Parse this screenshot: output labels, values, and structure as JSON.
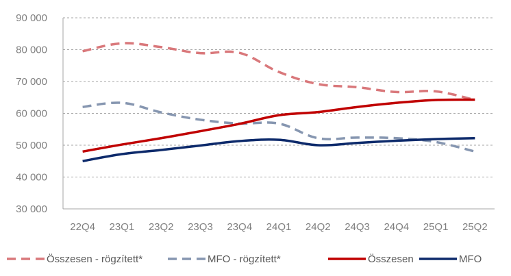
{
  "chart_data": {
    "type": "line",
    "title": "",
    "xlabel": "",
    "ylabel": "",
    "ylim": [
      30000,
      90000
    ],
    "yticks": [
      30000,
      40000,
      50000,
      60000,
      70000,
      80000,
      90000
    ],
    "ytick_labels": [
      "30 000",
      "40 000",
      "50 000",
      "60 000",
      "70 000",
      "80 000",
      "90 000"
    ],
    "grid": "horizontal dashed",
    "legend_position": "bottom",
    "categories": [
      "22Q4",
      "23Q1",
      "23Q2",
      "23Q3",
      "23Q4",
      "24Q1",
      "24Q2",
      "24Q3",
      "24Q4",
      "25Q1",
      "25Q2"
    ],
    "series": [
      {
        "name": "Összesen - rögzített*",
        "color": "#d9787b",
        "style": "dashed",
        "values": [
          79500,
          82000,
          80800,
          78900,
          79000,
          73000,
          69200,
          68200,
          66700,
          66900,
          64200
        ]
      },
      {
        "name": "MFO - rögzített*",
        "color": "#8696b0",
        "style": "dashed",
        "values": [
          62000,
          63300,
          60300,
          58000,
          56800,
          56800,
          52200,
          52400,
          52200,
          51000,
          48000
        ]
      },
      {
        "name": "Összesen",
        "color": "#c00000",
        "style": "solid",
        "values": [
          48000,
          50200,
          52200,
          54400,
          56700,
          59400,
          60400,
          62000,
          63300,
          64200,
          64300
        ]
      },
      {
        "name": "MFO",
        "color": "#0d2a6b",
        "style": "solid",
        "values": [
          45000,
          47200,
          48500,
          49900,
          51300,
          51700,
          50000,
          50700,
          51400,
          51900,
          52200
        ]
      }
    ]
  }
}
